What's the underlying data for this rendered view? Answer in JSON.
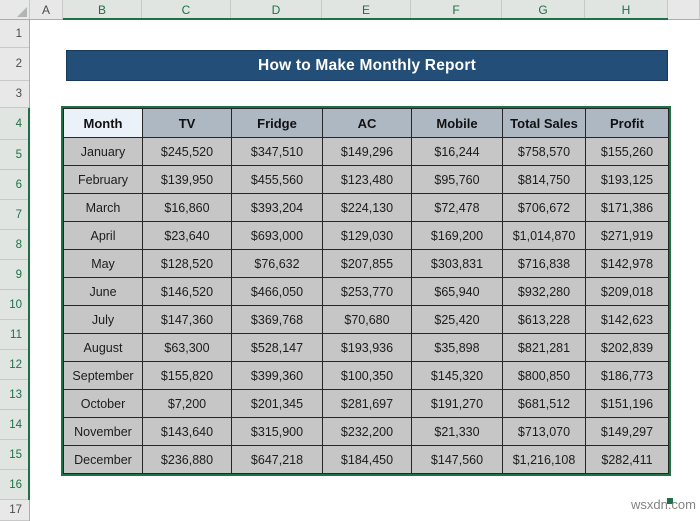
{
  "sheet": {
    "columns": [
      "A",
      "B",
      "C",
      "D",
      "E",
      "F",
      "G",
      "H"
    ],
    "rows": [
      "1",
      "2",
      "3",
      "4",
      "5",
      "6",
      "7",
      "8",
      "9",
      "10",
      "11",
      "12",
      "13",
      "14",
      "15",
      "16",
      "17"
    ],
    "selection": {
      "columns": [
        "B",
        "C",
        "D",
        "E",
        "F",
        "G",
        "H"
      ],
      "rows": [
        "4",
        "5",
        "6",
        "7",
        "8",
        "9",
        "10",
        "11",
        "12",
        "13",
        "14",
        "15",
        "16"
      ]
    }
  },
  "banner": {
    "title": "How to Make Monthly Report"
  },
  "table": {
    "headers": [
      "Month",
      "TV",
      "Fridge",
      "AC",
      "Mobile",
      "Total Sales",
      "Profit"
    ],
    "active_header": "Month",
    "rows": [
      [
        "January",
        "$245,520",
        "$347,510",
        "$149,296",
        "$16,244",
        "$758,570",
        "$155,260"
      ],
      [
        "February",
        "$139,950",
        "$455,560",
        "$123,480",
        "$95,760",
        "$814,750",
        "$193,125"
      ],
      [
        "March",
        "$16,860",
        "$393,204",
        "$224,130",
        "$72,478",
        "$706,672",
        "$171,386"
      ],
      [
        "April",
        "$23,640",
        "$693,000",
        "$129,030",
        "$169,200",
        "$1,014,870",
        "$271,919"
      ],
      [
        "May",
        "$128,520",
        "$76,632",
        "$207,855",
        "$303,831",
        "$716,838",
        "$142,978"
      ],
      [
        "June",
        "$146,520",
        "$466,050",
        "$253,770",
        "$65,940",
        "$932,280",
        "$209,018"
      ],
      [
        "July",
        "$147,360",
        "$369,768",
        "$70,680",
        "$25,420",
        "$613,228",
        "$142,623"
      ],
      [
        "August",
        "$63,300",
        "$528,147",
        "$193,936",
        "$35,898",
        "$821,281",
        "$202,839"
      ],
      [
        "September",
        "$155,820",
        "$399,360",
        "$100,350",
        "$145,320",
        "$800,850",
        "$186,773"
      ],
      [
        "October",
        "$7,200",
        "$201,345",
        "$281,697",
        "$191,270",
        "$681,512",
        "$151,196"
      ],
      [
        "November",
        "$143,640",
        "$315,900",
        "$232,200",
        "$21,330",
        "$713,070",
        "$149,297"
      ],
      [
        "December",
        "$236,880",
        "$647,218",
        "$184,450",
        "$147,560",
        "$1,216,108",
        "$282,411"
      ]
    ]
  },
  "colors": {
    "selection_green": "#1E7145",
    "banner_blue": "#234E77",
    "table_header_bg": "#AEB8C3",
    "active_cell_bg": "#EAF1F9",
    "data_cell_bg": "#C6C6C6"
  },
  "watermark": "wsxdn.com"
}
